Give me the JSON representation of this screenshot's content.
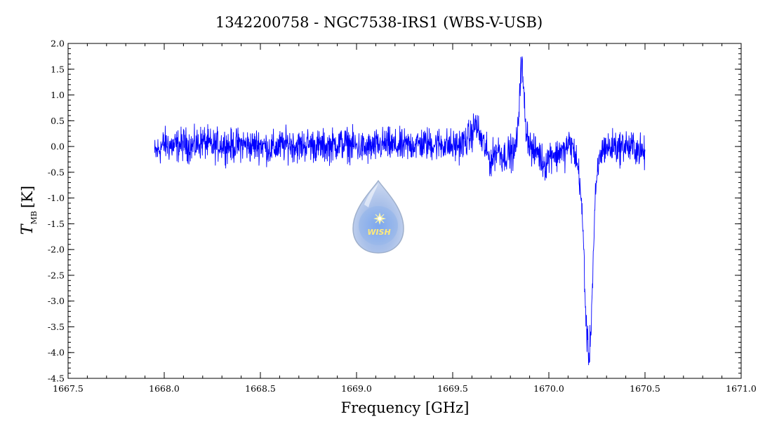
{
  "title": "1342200758 - NGC7538-IRS1 (WBS-V-USB)",
  "logo": {
    "text": "WISH"
  },
  "chart_data": {
    "type": "line",
    "title": "1342200758 - NGC7538-IRS1 (WBS-V-USB)",
    "xlabel": "Frequency [GHz]",
    "ylabel_main": "T",
    "ylabel_sub": "MB",
    "ylabel_unit": "[K]",
    "xlim": [
      1667.5,
      1671.0
    ],
    "ylim": [
      -4.5,
      2.0
    ],
    "x_ticks": [
      1667.5,
      1668.0,
      1668.5,
      1669.0,
      1669.5,
      1670.0,
      1670.5,
      1671.0
    ],
    "x_tick_labels": [
      "1667.5",
      "1668.0",
      "1668.5",
      "1669.0",
      "1669.5",
      "1670.0",
      "1670.5",
      "1671.0"
    ],
    "y_ticks": [
      2.0,
      1.5,
      1.0,
      0.5,
      0.0,
      -0.5,
      -1.0,
      -1.5,
      -2.0,
      -2.5,
      -3.0,
      -3.5,
      -4.0,
      -4.5
    ],
    "y_tick_labels": [
      "2.0",
      "1.5",
      "1.0",
      "0.5",
      "0.0",
      "-0.5",
      "-1.0",
      "-1.5",
      "-2.0",
      "-2.5",
      "-3.0",
      "-3.5",
      "-4.0",
      "-4.5"
    ],
    "grid": false,
    "series": [
      {
        "color": "#0000ff",
        "x": [
          1667.95,
          1668.0,
          1668.05,
          1668.1,
          1668.15,
          1668.2,
          1668.25,
          1668.3,
          1668.35,
          1668.4,
          1668.45,
          1668.5,
          1668.55,
          1668.6,
          1668.65,
          1668.7,
          1668.75,
          1668.8,
          1668.85,
          1668.9,
          1668.95,
          1669.0,
          1669.05,
          1669.1,
          1669.15,
          1669.2,
          1669.25,
          1669.3,
          1669.35,
          1669.4,
          1669.45,
          1669.5,
          1669.55,
          1669.58,
          1669.6,
          1669.62,
          1669.64,
          1669.66,
          1669.68,
          1669.7,
          1669.72,
          1669.74,
          1669.76,
          1669.78,
          1669.8,
          1669.82,
          1669.84,
          1669.85,
          1669.86,
          1669.87,
          1669.88,
          1669.9,
          1669.92,
          1669.94,
          1669.96,
          1669.98,
          1670.0,
          1670.02,
          1670.04,
          1670.06,
          1670.08,
          1670.1,
          1670.12,
          1670.14,
          1670.16,
          1670.18,
          1670.19,
          1670.2,
          1670.21,
          1670.22,
          1670.23,
          1670.24,
          1670.26,
          1670.28,
          1670.3,
          1670.32,
          1670.34,
          1670.36,
          1670.38,
          1670.4,
          1670.42,
          1670.44,
          1670.46,
          1670.48,
          1670.5
        ],
        "y": [
          -0.15,
          0.05,
          0.0,
          0.05,
          0.0,
          0.1,
          0.0,
          0.05,
          0.0,
          0.05,
          0.0,
          0.05,
          -0.05,
          0.0,
          0.05,
          0.0,
          0.05,
          0.0,
          0.0,
          0.05,
          0.05,
          0.0,
          -0.05,
          0.0,
          0.05,
          0.0,
          0.0,
          0.05,
          0.05,
          0.05,
          0.05,
          0.0,
          0.05,
          0.15,
          0.25,
          0.45,
          0.2,
          0.05,
          -0.15,
          -0.3,
          -0.1,
          -0.05,
          -0.2,
          -0.15,
          -0.1,
          -0.15,
          0.3,
          1.3,
          1.6,
          1.0,
          0.4,
          0.05,
          -0.15,
          -0.05,
          -0.25,
          -0.35,
          -0.2,
          -0.1,
          -0.2,
          -0.05,
          -0.15,
          0.05,
          0.0,
          -0.2,
          -0.6,
          -1.8,
          -3.1,
          -3.8,
          -4.1,
          -3.4,
          -2.3,
          -1.1,
          -0.3,
          -0.05,
          0.0,
          -0.05,
          0.05,
          -0.05,
          0.0,
          0.05,
          -0.05,
          0.0,
          -0.05,
          -0.1,
          -0.15
        ]
      }
    ]
  }
}
